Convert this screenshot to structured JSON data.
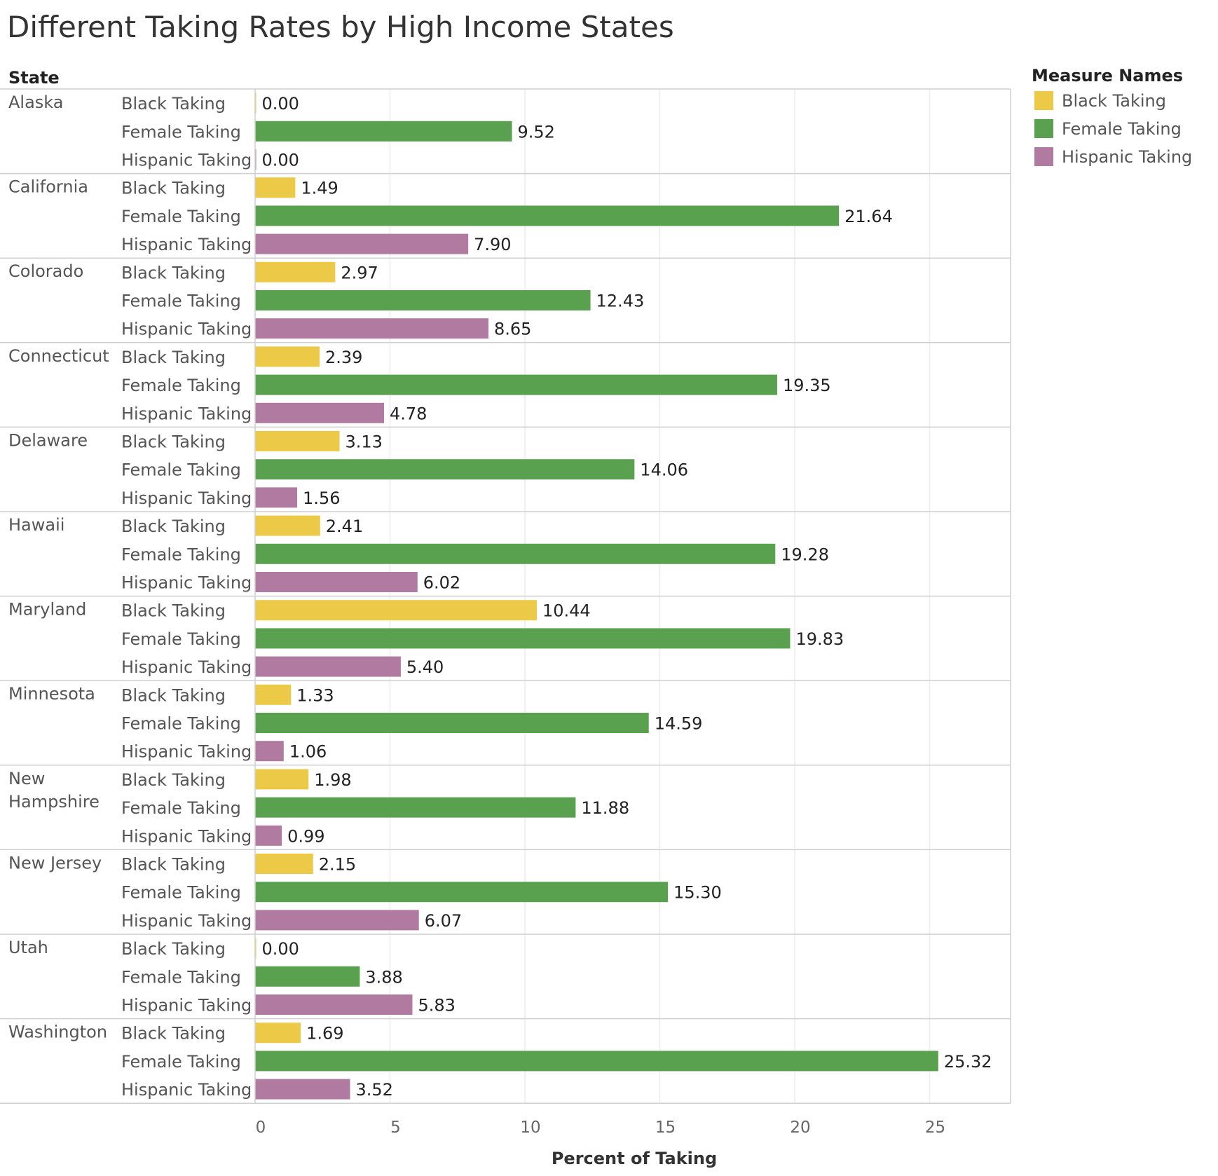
{
  "chart_data": {
    "type": "bar",
    "orientation": "horizontal",
    "title": "Different Taking Rates by High Income States",
    "row_header": "State",
    "xlabel": "Percent of Taking",
    "xlim": [
      0,
      28
    ],
    "xticks": [
      0,
      5,
      10,
      15,
      20,
      25
    ],
    "grid": true,
    "legend": {
      "title": "Measure Names",
      "placement": "top-right",
      "entries": [
        {
          "name": "Black Taking",
          "color": "#EDC948"
        },
        {
          "name": "Female Taking",
          "color": "#59A14F"
        },
        {
          "name": "Hispanic Taking",
          "color": "#B07AA1"
        }
      ]
    },
    "measures": [
      "Black Taking",
      "Female Taking",
      "Hispanic Taking"
    ],
    "colors": {
      "Black Taking": "#EDC948",
      "Female Taking": "#59A14F",
      "Hispanic Taking": "#B07AA1"
    },
    "states": [
      {
        "name": "Alaska",
        "label_lines": [
          "Alaska"
        ],
        "values": [
          0.0,
          9.52,
          0.0
        ],
        "labels": [
          "0.00",
          "9.52",
          "0.00"
        ]
      },
      {
        "name": "California",
        "label_lines": [
          "California"
        ],
        "values": [
          1.49,
          21.64,
          7.9
        ],
        "labels": [
          "1.49",
          "21.64",
          "7.90"
        ]
      },
      {
        "name": "Colorado",
        "label_lines": [
          "Colorado"
        ],
        "values": [
          2.97,
          12.43,
          8.65
        ],
        "labels": [
          "2.97",
          "12.43",
          "8.65"
        ]
      },
      {
        "name": "Connecticut",
        "label_lines": [
          "Connecticut"
        ],
        "values": [
          2.39,
          19.35,
          4.78
        ],
        "labels": [
          "2.39",
          "19.35",
          "4.78"
        ]
      },
      {
        "name": "Delaware",
        "label_lines": [
          "Delaware"
        ],
        "values": [
          3.13,
          14.06,
          1.56
        ],
        "labels": [
          "3.13",
          "14.06",
          "1.56"
        ]
      },
      {
        "name": "Hawaii",
        "label_lines": [
          "Hawaii"
        ],
        "values": [
          2.41,
          19.28,
          6.02
        ],
        "labels": [
          "2.41",
          "19.28",
          "6.02"
        ]
      },
      {
        "name": "Maryland",
        "label_lines": [
          "Maryland"
        ],
        "values": [
          10.44,
          19.83,
          5.4
        ],
        "labels": [
          "10.44",
          "19.83",
          "5.40"
        ]
      },
      {
        "name": "Minnesota",
        "label_lines": [
          "Minnesota"
        ],
        "values": [
          1.33,
          14.59,
          1.06
        ],
        "labels": [
          "1.33",
          "14.59",
          "1.06"
        ]
      },
      {
        "name": "New Hampshire",
        "label_lines": [
          "New",
          "Hampshire"
        ],
        "values": [
          1.98,
          11.88,
          0.99
        ],
        "labels": [
          "1.98",
          "11.88",
          "0.99"
        ]
      },
      {
        "name": "New Jersey",
        "label_lines": [
          "New Jersey"
        ],
        "values": [
          2.15,
          15.3,
          6.07
        ],
        "labels": [
          "2.15",
          "15.30",
          "6.07"
        ]
      },
      {
        "name": "Utah",
        "label_lines": [
          "Utah"
        ],
        "values": [
          0.0,
          3.88,
          5.83
        ],
        "labels": [
          "0.00",
          "3.88",
          "5.83"
        ]
      },
      {
        "name": "Washington",
        "label_lines": [
          "Washington"
        ],
        "values": [
          1.69,
          25.32,
          3.52
        ],
        "labels": [
          "1.69",
          "25.32",
          "3.52"
        ]
      }
    ]
  }
}
